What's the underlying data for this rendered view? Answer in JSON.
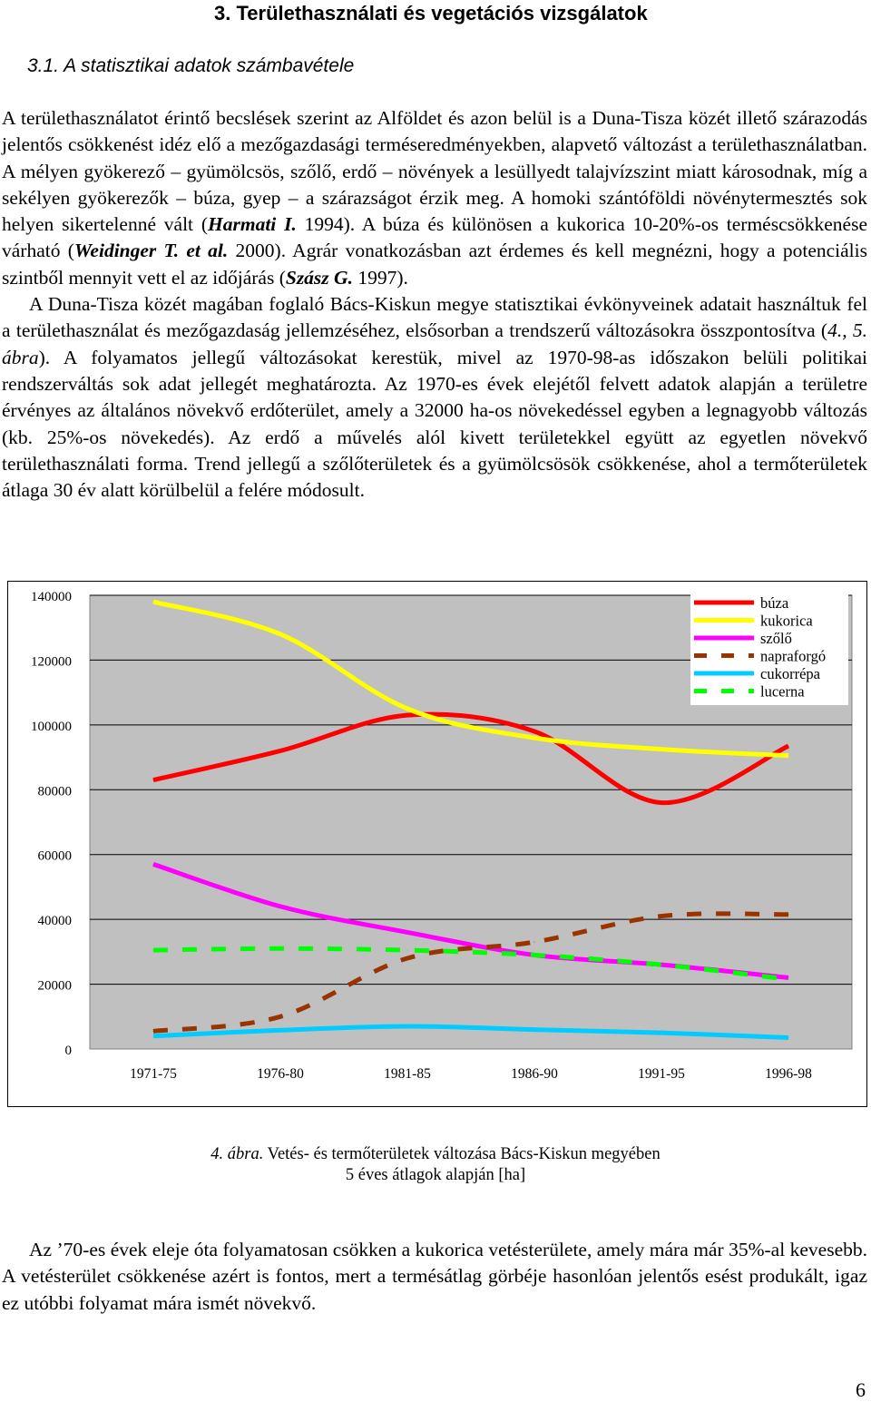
{
  "heading": "3. Területhasználati és vegetációs vizsgálatok",
  "subheading": "3.1. A statisztikai adatok számbavétele",
  "para1": {
    "s1": "A területhasználatot érintő becslések szerint az Alföldet és azon belül is a Duna-Tisza közét illető szárazodás jelentős csökkenést idéz elő a mezőgazdasági terméseredményekben, alapvető változást a területhasználatban. A mélyen gyökerező – gyümölcsös, szőlő, erdő – növények a lesüllyedt talajvízszint miatt károsodnak, míg a sekélyen gyökerezők – búza, gyep – a szárazságot érzik meg. A homoki szántóföldi növénytermesztés sok helyen sikertelenné vált (",
    "ref1": "Harmati I.",
    "s2": " 1994). A búza és különösen a kukorica 10-20%-os terméscsökkenése várható (",
    "ref2": "Weidinger T. et al.",
    "s3": " 2000). Agrár vonatkozásban azt érdemes és kell megnézni, hogy a potenciális szintből mennyit vett el az időjárás (",
    "ref3": "Szász G.",
    "s4": " 1997)."
  },
  "para2": {
    "s1": "A Duna-Tisza közét magában foglaló Bács-Kiskun megye statisztikai évkönyveinek adatait használtuk fel a területhasználat és mezőgazdaság jellemzéséhez, elsősorban a trendszerű változásokra összpontosítva (",
    "ref": "4., 5. ábra",
    "s2": "). A folyamatos jellegű változásokat kerestük, mivel az 1970-98-as időszakon belüli politikai rendszerváltás sok adat jellegét meghatározta. Az 1970-es évek elejétől felvett adatok alapján a területre érvényes az általános növekvő erdőterület, amely a 32000 ha-os növekedéssel egyben a legnagyobb változás (kb. 25%-os növekedés). Az erdő a művelés alól kivett területekkel együtt az egyetlen növekvő területhasználati forma. Trend jellegű a szőlőterületek és a gyümölcsösök csökkenése, ahol a termőterületek átlaga 30 év alatt körülbelül a felére módosult."
  },
  "chart_data": {
    "type": "line",
    "categories": [
      "1971-75",
      "1976-80",
      "1981-85",
      "1986-90",
      "1991-95",
      "1996-98"
    ],
    "ylim": [
      0,
      140000
    ],
    "yticks": [
      0,
      20000,
      40000,
      60000,
      80000,
      100000,
      120000,
      140000
    ],
    "yticks_text": [
      "0",
      "20000",
      "40000",
      "60000",
      "80000",
      "100000",
      "120000",
      "140000"
    ],
    "grid": true,
    "legend_position": "top-right",
    "plot_background": "#c0c0c0",
    "series": [
      {
        "name": "búza",
        "color": "#ff0000",
        "style": "solid",
        "values": [
          83000,
          92000,
          103000,
          98000,
          76000,
          93500
        ]
      },
      {
        "name": "kukorica",
        "color": "#ffff00",
        "style": "solid",
        "values": [
          138000,
          128000,
          105000,
          96000,
          92500,
          90500
        ]
      },
      {
        "name": "szőlő",
        "color": "#ff00ff",
        "style": "solid",
        "values": [
          57000,
          44000,
          36000,
          29000,
          26000,
          22000
        ]
      },
      {
        "name": "napraforgó",
        "color": "#993300",
        "style": "dashed",
        "values": [
          5500,
          10000,
          28000,
          33000,
          41000,
          41500
        ]
      },
      {
        "name": "cukorrépa",
        "color": "#00ccff",
        "style": "solid",
        "values": [
          4000,
          5800,
          7000,
          6000,
          5000,
          3500
        ]
      },
      {
        "name": "lucerna",
        "color": "#00ff00",
        "style": "dashed",
        "values": [
          30500,
          31000,
          30500,
          29000,
          26000,
          21500
        ]
      }
    ]
  },
  "caption": {
    "label": "4. ábra.",
    "line1": " Vetés- és termőterületek változása Bács-Kiskun megyében",
    "line2": "5 éves átlagok alapján [ha]"
  },
  "para3": "Az ’70-es évek eleje óta folyamatosan csökken a kukorica vetésterülete, amely mára már 35%-al kevesebb. A vetésterület csökkenése azért is fontos, mert a termésátlag görbéje hasonlóan jelentős esést produkált, igaz ez utóbbi folyamat mára ismét növekvő.",
  "page_number": "6"
}
